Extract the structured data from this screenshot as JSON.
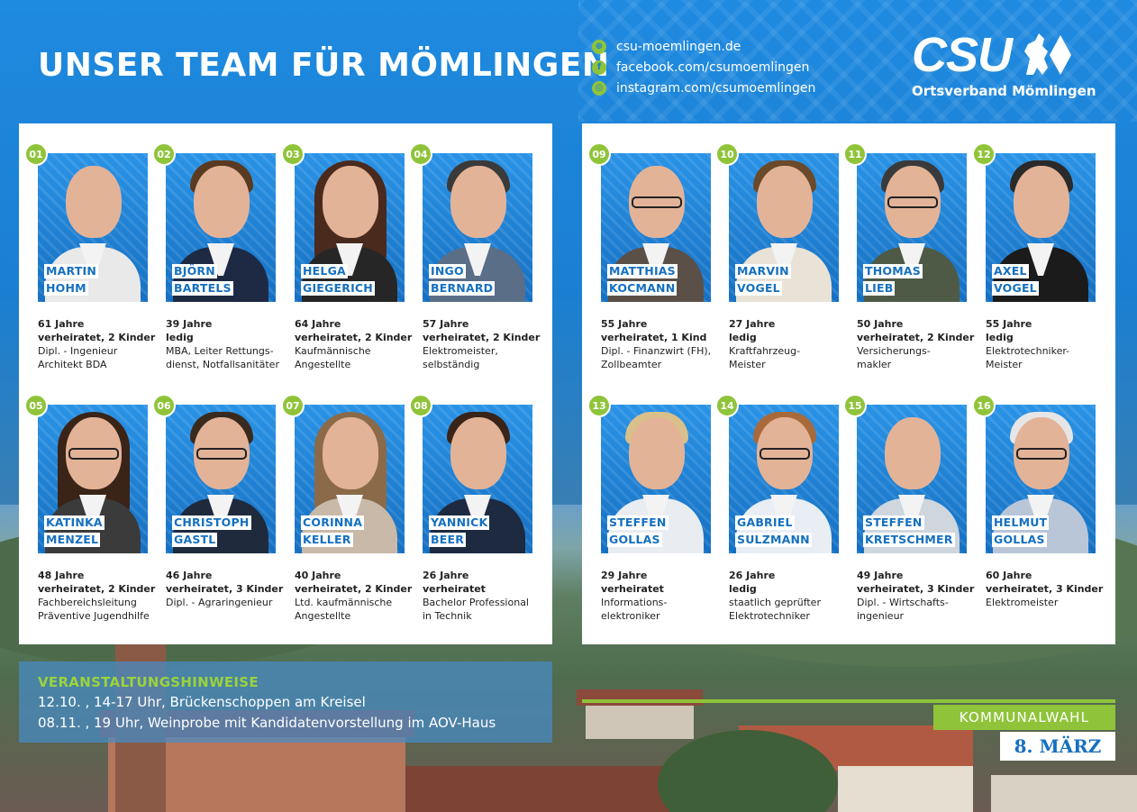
{
  "header": {
    "title": "UNSER TEAM FÜR MÖMLINGEN",
    "social": [
      {
        "icon": "globe-icon",
        "label": "csu-moemlingen.de"
      },
      {
        "icon": "facebook-icon",
        "label": "facebook.com/csumoemlingen"
      },
      {
        "icon": "instagram-icon",
        "label": "instagram.com/csumoemlingen"
      }
    ],
    "brand": {
      "logo": "CSU",
      "subtitle": "Ortsverband Mömlingen"
    }
  },
  "candidates": [
    {
      "num": "01",
      "first": "MARTIN",
      "last": "HOHM",
      "age": "61 Jahre",
      "status": "verheiratet, 2 Kinder",
      "job1": "Dipl. - Ingenieur",
      "job2": "Architekt BDA"
    },
    {
      "num": "02",
      "first": "BJÖRN",
      "last": "BARTELS",
      "age": "39 Jahre",
      "status": "ledig",
      "job1": "MBA, Leiter Rettungs-",
      "job2": "dienst, Notfallsanitäter"
    },
    {
      "num": "03",
      "first": "HELGA",
      "last": "GIEGERICH",
      "age": "64 Jahre",
      "status": "verheiratet, 2 Kinder",
      "job1": "Kaufmännische",
      "job2": "Angestellte"
    },
    {
      "num": "04",
      "first": "INGO",
      "last": "BERNARD",
      "age": "57 Jahre",
      "status": "verheiratet, 2 Kinder",
      "job1": "Elektromeister,",
      "job2": "selbständig"
    },
    {
      "num": "05",
      "first": "KATINKA",
      "last": "MENZEL",
      "age": "48 Jahre",
      "status": "verheiratet, 2 Kinder",
      "job1": "Fachbereichsleitung",
      "job2": "Präventive Jugendhilfe"
    },
    {
      "num": "06",
      "first": "CHRISTOPH",
      "last": "GASTL",
      "age": "46 Jahre",
      "status": "verheiratet, 3 Kinder",
      "job1": "Dipl. - Agraringenieur",
      "job2": ""
    },
    {
      "num": "07",
      "first": "CORINNA",
      "last": "KELLER",
      "age": "40 Jahre",
      "status": "verheiratet, 2 Kinder",
      "job1": "Ltd. kaufmännische",
      "job2": "Angestellte"
    },
    {
      "num": "08",
      "first": "YANNICK",
      "last": "BEER",
      "age": "26 Jahre",
      "status": "verheiratet",
      "job1": "Bachelor Professional",
      "job2": "in Technik"
    },
    {
      "num": "09",
      "first": "MATTHIAS",
      "last": "KOCMANN",
      "age": "55 Jahre",
      "status": "verheiratet, 1 Kind",
      "job1": "Dipl. - Finanzwirt (FH),",
      "job2": "Zollbeamter"
    },
    {
      "num": "10",
      "first": "MARVIN",
      "last": "VOGEL",
      "age": "27 Jahre",
      "status": "ledig",
      "job1": "Kraftfahrzeug-",
      "job2": "Meister"
    },
    {
      "num": "11",
      "first": "THOMAS",
      "last": "LIEB",
      "age": "50 Jahre",
      "status": "verheiratet, 2 Kinder",
      "job1": "Versicherungs-",
      "job2": "makler"
    },
    {
      "num": "12",
      "first": "AXEL",
      "last": "VOGEL",
      "age": "55 Jahre",
      "status": "ledig",
      "job1": "Elektrotechniker-",
      "job2": "Meister"
    },
    {
      "num": "13",
      "first": "STEFFEN",
      "last": "GOLLAS",
      "age": "29 Jahre",
      "status": "verheiratet",
      "job1": "Informations-",
      "job2": "elektroniker"
    },
    {
      "num": "14",
      "first": "GABRIEL",
      "last": "SULZMANN",
      "age": "26 Jahre",
      "status": "ledig",
      "job1": "staatlich geprüfter",
      "job2": "Elektrotechniker"
    },
    {
      "num": "15",
      "first": "STEFFEN",
      "last": "KRETSCHMER",
      "age": "49 Jahre",
      "status": "verheiratet, 3 Kinder",
      "job1": "Dipl. - Wirtschafts-",
      "job2": "ingenieur"
    },
    {
      "num": "16",
      "first": "HELMUT",
      "last": "GOLLAS",
      "age": "60 Jahre",
      "status": "verheiratet, 3 Kinder",
      "job1": "Elektromeister",
      "job2": ""
    }
  ],
  "events": {
    "title": "VERANSTALTUNGSHINWEISE",
    "items": [
      "12.10. , 14-17 Uhr, Brückenschoppen am Kreisel",
      "08.11. , 19 Uhr, Weinprobe mit Kandidatenvorstellung im AOV-Haus"
    ]
  },
  "election": {
    "label": "KOMMUNALWAHL",
    "date": "8. MÄRZ"
  },
  "colors": {
    "blue": "#1b7fd1",
    "green": "#8fc43a",
    "name_blue": "#1570c0"
  }
}
